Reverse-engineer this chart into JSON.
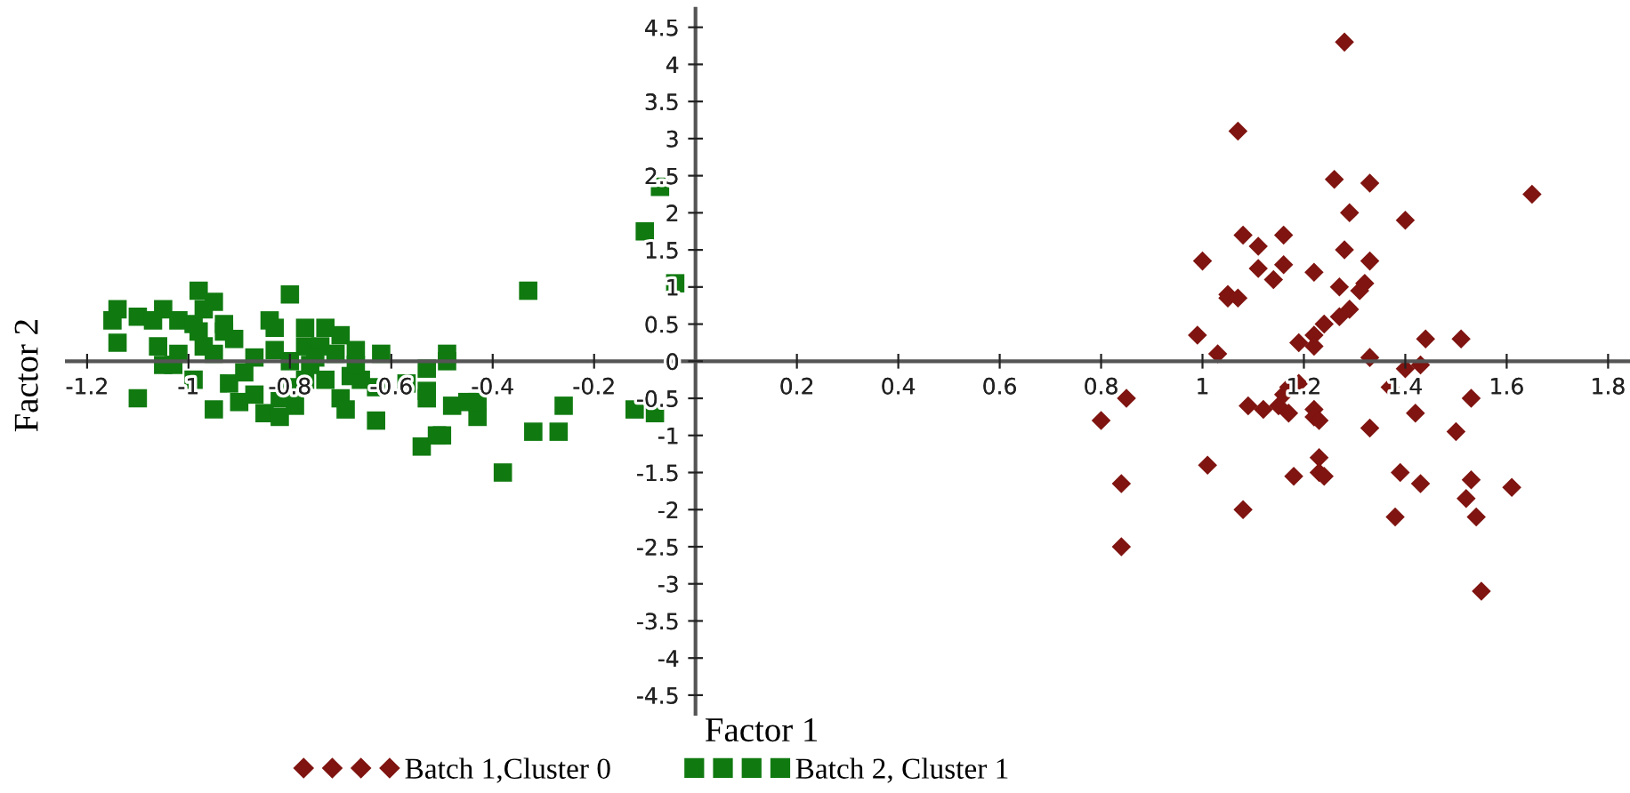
{
  "chart_data": {
    "type": "scatter",
    "xlabel": "Factor 1",
    "ylabel": "Factor 2",
    "xlim": [
      -1.24,
      1.84
    ],
    "ylim": [
      -4.75,
      4.75
    ],
    "xticks": [
      -1.2,
      -1,
      -0.8,
      -0.6,
      -0.4,
      -0.2,
      0.2,
      0.4,
      0.6,
      0.8,
      1,
      1.2,
      1.4,
      1.6,
      1.8
    ],
    "yticks": [
      -4.5,
      -4,
      -3.5,
      -3,
      -2.5,
      -2,
      -1.5,
      -1,
      -0.5,
      0,
      0.5,
      1,
      1.5,
      2,
      2.5,
      3,
      3.5,
      4,
      4.5
    ],
    "grid": false,
    "legend": "bottom",
    "series": [
      {
        "name": "Batch 1,Cluster 0",
        "color": "#7f1410",
        "marker": "diamond",
        "x": [
          1.28,
          1.07,
          1.26,
          1.33,
          1.65,
          1.29,
          1.4,
          1.08,
          1.16,
          1.11,
          1.0,
          1.28,
          1.33,
          1.11,
          1.16,
          1.14,
          1.22,
          1.27,
          1.32,
          1.31,
          1.05,
          1.05,
          1.07,
          0.99,
          1.03,
          1.19,
          1.22,
          1.22,
          1.24,
          1.27,
          1.29,
          1.33,
          1.44,
          1.51,
          1.4,
          1.43,
          1.37,
          1.53,
          0.85,
          0.8,
          1.09,
          1.12,
          1.15,
          1.17,
          1.16,
          1.17,
          1.19,
          1.22,
          1.22,
          1.23,
          1.33,
          1.42,
          1.5,
          1.23,
          1.23,
          1.24,
          1.18,
          1.01,
          0.84,
          1.39,
          1.43,
          1.53,
          1.61,
          1.52,
          1.08,
          1.38,
          1.54,
          0.84,
          1.55
        ],
        "values": [
          4.3,
          3.1,
          2.45,
          2.4,
          2.25,
          2.0,
          1.9,
          1.7,
          1.7,
          1.55,
          1.35,
          1.5,
          1.35,
          1.25,
          1.3,
          1.1,
          1.2,
          1.0,
          1.05,
          0.95,
          0.9,
          0.85,
          0.85,
          0.35,
          0.1,
          0.25,
          0.35,
          0.2,
          0.5,
          0.6,
          0.7,
          0.05,
          0.3,
          0.3,
          -0.1,
          -0.05,
          -0.35,
          -0.5,
          -0.5,
          -0.8,
          -0.6,
          -0.65,
          -0.6,
          -0.7,
          -0.45,
          -0.35,
          -0.3,
          -0.65,
          -0.75,
          -0.8,
          -0.9,
          -0.7,
          -0.95,
          -1.3,
          -1.5,
          -1.55,
          -1.55,
          -1.4,
          -1.65,
          -1.5,
          -1.65,
          -1.6,
          -1.7,
          -1.85,
          -2.0,
          -2.1,
          -2.1,
          -2.5,
          -3.1
        ]
      },
      {
        "name": "Batch 2, Cluster 1",
        "color": "#107a10",
        "marker": "square",
        "x": [
          -0.98,
          -0.8,
          -0.33,
          -1.14,
          -1.15,
          -1.1,
          -1.05,
          -1.07,
          -0.95,
          -0.97,
          -1.02,
          -0.99,
          -0.93,
          -0.84,
          -0.83,
          -0.77,
          -0.73,
          -0.7,
          -1.14,
          -1.06,
          -0.91,
          -0.97,
          -1.02,
          -1.05,
          -0.99,
          -0.95,
          -0.87,
          -0.83,
          -0.77,
          -0.74,
          -0.71,
          -0.67,
          -0.62,
          -0.8,
          -0.76,
          -0.73,
          -0.68,
          -0.66,
          -0.63,
          -0.89,
          -0.92,
          -0.9,
          -0.87,
          -0.82,
          -0.79,
          -0.8,
          -0.77,
          -1.1,
          -0.95,
          -0.85,
          -0.82,
          -0.7,
          -0.69,
          -0.63,
          -0.53,
          -0.57,
          -0.53,
          -0.53,
          -0.49,
          -0.49,
          -0.48,
          -0.45,
          -0.43,
          -0.26,
          -0.32,
          -0.27,
          -0.54,
          -0.51,
          -0.5,
          -0.38,
          -0.07,
          -0.1,
          -0.04,
          -0.12,
          -0.08,
          -0.43,
          -0.98,
          -0.93,
          -1.03,
          -0.75,
          -0.67
        ],
        "values": [
          0.95,
          0.9,
          0.95,
          0.7,
          0.55,
          0.6,
          0.7,
          0.55,
          0.8,
          0.7,
          0.55,
          0.5,
          0.5,
          0.55,
          0.45,
          0.45,
          0.45,
          0.35,
          0.25,
          0.2,
          0.3,
          0.2,
          0.1,
          -0.05,
          -0.25,
          0.1,
          0.05,
          0.15,
          0.2,
          0.2,
          0.1,
          0.15,
          0.1,
          0.0,
          -0.05,
          -0.25,
          -0.2,
          -0.25,
          -0.35,
          -0.15,
          -0.3,
          -0.55,
          -0.45,
          -0.5,
          -0.6,
          -0.35,
          -0.25,
          -0.5,
          -0.65,
          -0.7,
          -0.75,
          -0.5,
          -0.65,
          -0.8,
          -0.1,
          -0.3,
          -0.4,
          -0.5,
          0.1,
          0.0,
          -0.6,
          -0.55,
          -0.75,
          -0.6,
          -0.95,
          -0.95,
          -1.15,
          -1.0,
          -1.0,
          -1.5,
          2.35,
          1.75,
          1.05,
          -0.65,
          -0.7,
          -0.55,
          0.4,
          0.4,
          -0.05,
          0.05,
          -0.05
        ]
      }
    ]
  }
}
